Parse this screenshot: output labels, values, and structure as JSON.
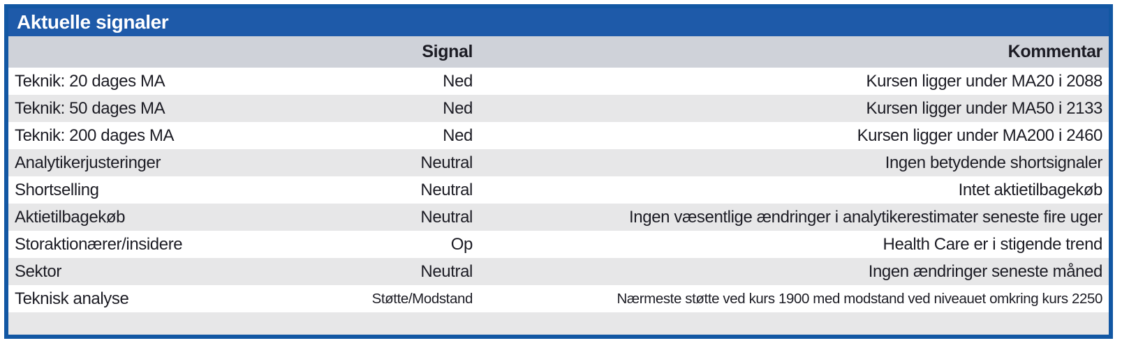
{
  "title": "Aktuelle signaler",
  "colors": {
    "border_blue": "#1257a3",
    "title_bar_blue": "#1e5aa9",
    "header_row_gray": "#cfd2d9",
    "alt_row_gray": "#e7e7e8",
    "text_dark": "#1c1c24",
    "title_text": "#ffffff"
  },
  "table": {
    "columns": {
      "label": "",
      "signal": "Signal",
      "comment": "Kommentar"
    },
    "rows": [
      {
        "label": "Teknik: 20 dages MA",
        "signal": "Ned",
        "comment": "Kursen ligger under MA20 i 2088"
      },
      {
        "label": "Teknik: 50 dages MA",
        "signal": "Ned",
        "comment": "Kursen ligger under MA50 i 2133"
      },
      {
        "label": "Teknik: 200 dages MA",
        "signal": "Ned",
        "comment": "Kursen ligger under MA200 i 2460"
      },
      {
        "label": "Analytikerjusteringer",
        "signal": "Neutral",
        "comment": "Ingen betydende shortsignaler"
      },
      {
        "label": "Shortselling",
        "signal": "Neutral",
        "comment": "Intet aktietilbagekøb"
      },
      {
        "label": "Aktietilbagekøb",
        "signal": "Neutral",
        "comment": "Ingen væsentlige ændringer i analytikerestimater seneste fire uger"
      },
      {
        "label": "Storaktionærer/insidere",
        "signal": "Op",
        "comment": "Health Care er i stigende trend"
      },
      {
        "label": "Sektor",
        "signal": "Neutral",
        "comment": "Ingen ændringer seneste måned"
      },
      {
        "label": "Teknisk analyse",
        "signal": "Støtte/Modstand",
        "comment": "Nærmeste støtte ved kurs 1900 med modstand ved niveauet omkring kurs 2250"
      }
    ]
  }
}
